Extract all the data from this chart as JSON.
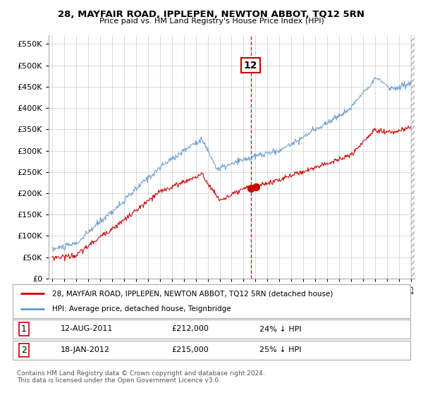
{
  "title": "28, MAYFAIR ROAD, IPPLEPEN, NEWTON ABBOT, TQ12 5RN",
  "subtitle": "Price paid vs. HM Land Registry's House Price Index (HPI)",
  "ylim": [
    0,
    570000
  ],
  "yticks": [
    0,
    50000,
    100000,
    150000,
    200000,
    250000,
    300000,
    350000,
    400000,
    450000,
    500000,
    550000
  ],
  "legend_label1": "28, MAYFAIR ROAD, IPPLEPEN, NEWTON ABBOT, TQ12 5RN (detached house)",
  "legend_label2": "HPI: Average price, detached house, Teignbridge",
  "color_red": "#cc0000",
  "color_blue": "#6699cc",
  "vline_color": "#cc0000",
  "transaction1_date": 2011.6,
  "transaction2_date": 2012.05,
  "transaction1_price": 212000,
  "transaction2_price": 215000,
  "footer1": "Contains HM Land Registry data © Crown copyright and database right 2024.",
  "footer2": "This data is licensed under the Open Government Licence v3.0.",
  "row1": [
    "1",
    "12-AUG-2011",
    "£212,000",
    "24% ↓ HPI"
  ],
  "row2": [
    "2",
    "18-JAN-2012",
    "£215,000",
    "25% ↓ HPI"
  ],
  "background_color": "#ffffff",
  "grid_color": "#cccccc",
  "xlim_left": 1994.7,
  "xlim_right": 2025.3
}
